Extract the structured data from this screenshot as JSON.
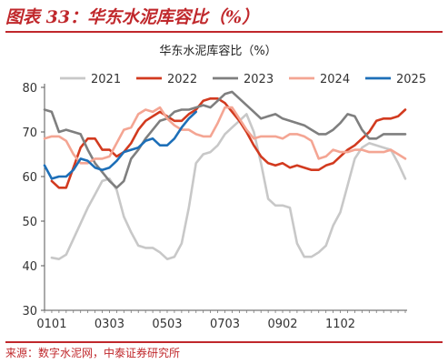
{
  "figure_title": "图表 33：华东水泥库容比（%）",
  "source": "来源：数字水泥网，中泰证券研究所",
  "chart_data": {
    "type": "line",
    "title": "华东水泥库容比（%）",
    "ylim": [
      30,
      80
    ],
    "yticks": [
      30,
      40,
      50,
      60,
      70,
      80
    ],
    "x_tick_labels": [
      "0101",
      "0303",
      "0503",
      "0703",
      "0902",
      "1102"
    ],
    "x_tick_positions": [
      1,
      9,
      17,
      25,
      33,
      41
    ],
    "n_points": 51,
    "grid": false,
    "legend_position": "top",
    "series": [
      {
        "name": "2021",
        "color": "#c8c8c8",
        "values": [
          null,
          41.8,
          41.5,
          42.5,
          46,
          49.5,
          53,
          56,
          59,
          59.5,
          57,
          51,
          47.5,
          44.5,
          44,
          44,
          43,
          41.5,
          42,
          45,
          53,
          63,
          65,
          65.5,
          67,
          69.5,
          71,
          72.5,
          74,
          70,
          63,
          55,
          53.5,
          53.5,
          53,
          45,
          42,
          42,
          43,
          44.5,
          49,
          52,
          58,
          64,
          66.5,
          67.5,
          67,
          66.5,
          66,
          63,
          59.5
        ]
      },
      {
        "name": "2022",
        "color": "#d23a1f",
        "values": [
          null,
          59,
          57.5,
          57.5,
          62,
          66.5,
          68.5,
          68.5,
          66,
          66,
          64.5,
          65.5,
          67.5,
          70.5,
          72.5,
          73.5,
          74.5,
          73.5,
          72.5,
          72.5,
          74,
          75,
          77,
          77.5,
          77.5,
          76.5,
          74.5,
          72.5,
          70,
          67,
          64.5,
          63,
          62.5,
          63,
          62,
          62.5,
          62,
          61.5,
          61.5,
          62.5,
          63,
          64.5,
          66,
          67,
          68.5,
          70,
          72.5,
          73,
          73,
          73.5,
          75
        ]
      },
      {
        "name": "2023",
        "color": "#7f7f7f",
        "values": [
          75,
          74.5,
          70,
          70.5,
          70,
          69.5,
          66,
          63,
          61,
          59,
          57.5,
          59,
          64,
          66,
          68.5,
          70.5,
          72.5,
          73,
          74.5,
          75,
          75,
          75.5,
          76,
          75.5,
          77,
          78.5,
          79,
          77.5,
          76,
          74.5,
          73,
          73.5,
          74,
          73,
          72.5,
          72,
          71.5,
          70.5,
          69.5,
          69.5,
          70.5,
          72,
          74,
          73.5,
          70.5,
          68.5,
          68.5,
          69.5,
          69.5,
          69.5,
          69.5
        ]
      },
      {
        "name": "2024",
        "color": "#f4a593",
        "values": [
          68.5,
          69,
          69,
          68,
          65,
          63,
          63,
          64,
          64,
          64.5,
          67.5,
          70.5,
          71,
          74,
          75,
          74.5,
          75.5,
          73,
          71.5,
          70.5,
          70.5,
          69.5,
          69,
          69,
          72,
          75.5,
          75.5,
          73,
          70.5,
          68.5,
          69,
          69,
          69,
          68.5,
          69.5,
          69.5,
          69,
          68,
          64,
          64.5,
          66,
          65.5,
          65.5,
          66,
          66,
          65.5,
          65.5,
          65.5,
          66,
          65,
          64
        ]
      },
      {
        "name": "2025",
        "color": "#1d6fb8",
        "values": [
          62.5,
          59.5,
          60,
          60,
          61.5,
          64,
          63.5,
          62,
          61.5,
          62,
          63.5,
          65.5,
          66,
          66.5,
          68,
          68.5,
          67,
          67,
          68.5,
          71,
          73,
          74.5
        ]
      }
    ]
  }
}
